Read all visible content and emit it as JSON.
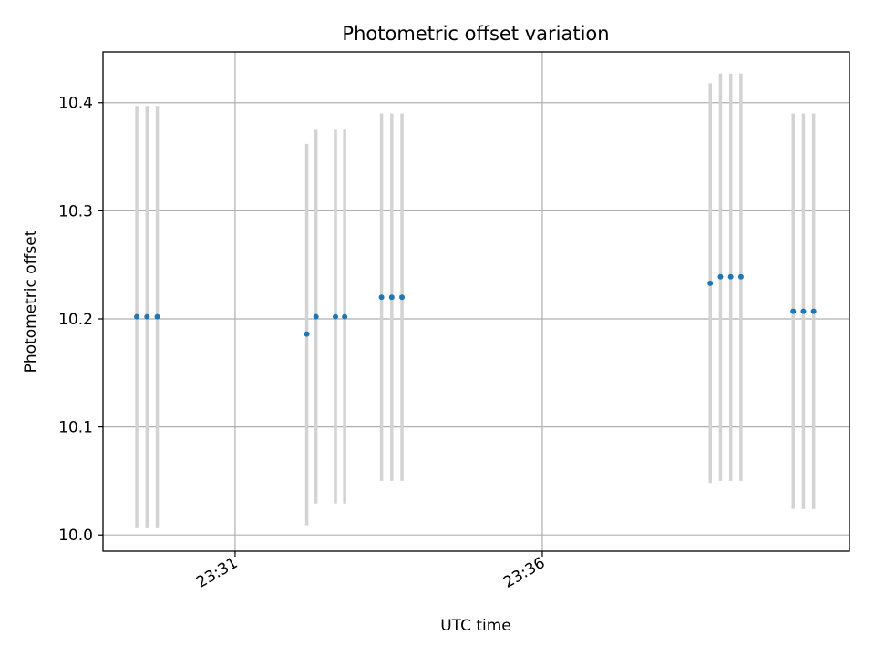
{
  "chart_data": {
    "type": "scatter",
    "title": "Photometric offset variation",
    "xlabel": "UTC time",
    "ylabel": "Photometric offset",
    "x_unit": "minutes",
    "xlim": [
      "23:28:51",
      "23:41:00"
    ],
    "ylim": [
      9.985,
      10.447
    ],
    "xticks": [
      {
        "value": "23:31:00",
        "label": "23:31"
      },
      {
        "value": "23:36:00",
        "label": "23:36"
      }
    ],
    "yticks": [
      {
        "value": 10.0,
        "label": "10.0"
      },
      {
        "value": 10.1,
        "label": "10.1"
      },
      {
        "value": 10.2,
        "label": "10.2"
      },
      {
        "value": 10.3,
        "label": "10.3"
      },
      {
        "value": 10.4,
        "label": "10.4"
      }
    ],
    "grid": true,
    "marker_color": "#1f77b4",
    "errorbar_color": "#d3d3d3",
    "points": [
      {
        "x": "23:29:24",
        "y": 10.202,
        "ylow": 10.007,
        "yhigh": 10.397
      },
      {
        "x": "23:29:34",
        "y": 10.202,
        "ylow": 10.007,
        "yhigh": 10.397
      },
      {
        "x": "23:29:44",
        "y": 10.202,
        "ylow": 10.007,
        "yhigh": 10.397
      },
      {
        "x": "23:32:10",
        "y": 10.186,
        "ylow": 10.009,
        "yhigh": 10.362
      },
      {
        "x": "23:32:19",
        "y": 10.202,
        "ylow": 10.029,
        "yhigh": 10.375
      },
      {
        "x": "23:32:38",
        "y": 10.202,
        "ylow": 10.029,
        "yhigh": 10.375
      },
      {
        "x": "23:32:47",
        "y": 10.202,
        "ylow": 10.029,
        "yhigh": 10.375
      },
      {
        "x": "23:33:23",
        "y": 10.22,
        "ylow": 10.05,
        "yhigh": 10.39
      },
      {
        "x": "23:33:33",
        "y": 10.22,
        "ylow": 10.05,
        "yhigh": 10.39
      },
      {
        "x": "23:33:43",
        "y": 10.22,
        "ylow": 10.05,
        "yhigh": 10.39
      },
      {
        "x": "23:38:44",
        "y": 10.233,
        "ylow": 10.048,
        "yhigh": 10.418
      },
      {
        "x": "23:38:54",
        "y": 10.239,
        "ylow": 10.05,
        "yhigh": 10.427
      },
      {
        "x": "23:39:04",
        "y": 10.239,
        "ylow": 10.05,
        "yhigh": 10.427
      },
      {
        "x": "23:39:14",
        "y": 10.239,
        "ylow": 10.05,
        "yhigh": 10.427
      },
      {
        "x": "23:40:05",
        "y": 10.207,
        "ylow": 10.024,
        "yhigh": 10.39
      },
      {
        "x": "23:40:15",
        "y": 10.207,
        "ylow": 10.024,
        "yhigh": 10.39
      },
      {
        "x": "23:40:25",
        "y": 10.207,
        "ylow": 10.024,
        "yhigh": 10.39
      }
    ]
  }
}
